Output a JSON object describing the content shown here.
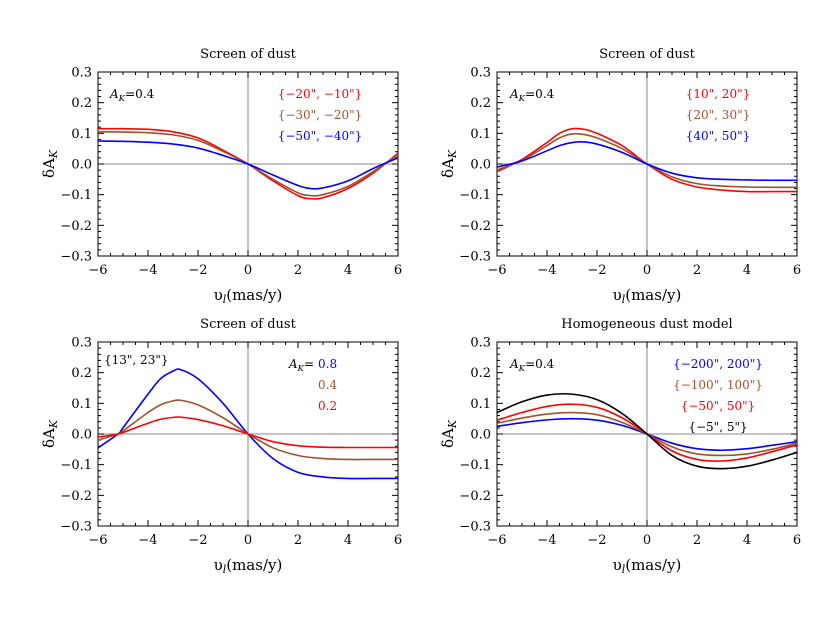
{
  "chart_data": [
    {
      "type": "line",
      "title": "Screen of dust",
      "xlabel": "υ_l(mas/y)",
      "ylabel": "δA_K",
      "xlim": [
        -6,
        6
      ],
      "ylim": [
        -0.3,
        0.3
      ],
      "xticks": [
        -6,
        -4,
        -2,
        0,
        2,
        4,
        6
      ],
      "yticks": [
        -0.3,
        -0.2,
        -0.1,
        0.0,
        0.1,
        0.2,
        0.3
      ],
      "annotation": "A_K=0.4",
      "legend": [
        "{−20\", −10\"}",
        "{−30\", −20\"}",
        "{−50\", −40\"}"
      ],
      "series": [
        {
          "name": "{−20\", −10\"}",
          "color": "#ff0000",
          "x": [
            -6,
            -5,
            -4,
            -3,
            -2,
            -1,
            0,
            1,
            2,
            2.5,
            3,
            4,
            5,
            6
          ],
          "values": [
            0.115,
            0.115,
            0.113,
            0.105,
            0.085,
            0.045,
            0.0,
            -0.055,
            -0.103,
            -0.113,
            -0.11,
            -0.08,
            -0.03,
            0.035
          ]
        },
        {
          "name": "{−30\", −20\"}",
          "color": "#a0522d",
          "x": [
            -6,
            -5,
            -4,
            -3,
            -2,
            -1,
            0,
            1,
            2,
            2.5,
            3,
            4,
            5,
            6
          ],
          "values": [
            0.105,
            0.104,
            0.102,
            0.095,
            0.077,
            0.041,
            0.0,
            -0.05,
            -0.094,
            -0.103,
            -0.1,
            -0.073,
            -0.025,
            0.03
          ]
        },
        {
          "name": "{−50\", −40\"}",
          "color": "#0000ff",
          "x": [
            -6,
            -5,
            -4,
            -3,
            -2,
            -1,
            0,
            1,
            2,
            2.5,
            3,
            4,
            5,
            6
          ],
          "values": [
            0.075,
            0.074,
            0.071,
            0.065,
            0.052,
            0.028,
            0.0,
            -0.036,
            -0.07,
            -0.08,
            -0.078,
            -0.055,
            -0.015,
            0.02
          ]
        }
      ]
    },
    {
      "type": "line",
      "title": "Screen of dust",
      "xlabel": "υ_l(mas/y)",
      "ylabel": "δA_K",
      "xlim": [
        -6,
        6
      ],
      "ylim": [
        -0.3,
        0.3
      ],
      "xticks": [
        -6,
        -4,
        -2,
        0,
        2,
        4,
        6
      ],
      "yticks": [
        -0.3,
        -0.2,
        -0.1,
        0.0,
        0.1,
        0.2,
        0.3
      ],
      "annotation": "A_K=0.4",
      "legend": [
        "{10\", 20\"}",
        "{20\", 30\"}",
        "{40\", 50\"}"
      ],
      "series": [
        {
          "name": "{10\", 20\"}",
          "color": "#ff0000",
          "x": [
            -6,
            -5,
            -4,
            -3.5,
            -3,
            -2.5,
            -2,
            -1,
            0,
            1,
            2,
            3,
            4,
            5,
            6
          ],
          "values": [
            -0.025,
            0.015,
            0.07,
            0.1,
            0.115,
            0.113,
            0.1,
            0.06,
            0.0,
            -0.05,
            -0.075,
            -0.085,
            -0.09,
            -0.09,
            -0.09
          ]
        },
        {
          "name": "{20\", 30\"}",
          "color": "#a0522d",
          "x": [
            -6,
            -5,
            -4,
            -3.5,
            -3,
            -2.5,
            -2,
            -1,
            0,
            1,
            2,
            3,
            4,
            5,
            6
          ],
          "values": [
            -0.02,
            0.012,
            0.06,
            0.085,
            0.098,
            0.096,
            0.085,
            0.05,
            0.0,
            -0.042,
            -0.064,
            -0.072,
            -0.075,
            -0.076,
            -0.076
          ]
        },
        {
          "name": "{40\", 50\"}",
          "color": "#0000ff",
          "x": [
            -6,
            -5,
            -4,
            -3.5,
            -3,
            -2.5,
            -2,
            -1,
            0,
            1,
            2,
            3,
            4,
            5,
            6
          ],
          "values": [
            -0.01,
            0.01,
            0.043,
            0.06,
            0.07,
            0.072,
            0.065,
            0.038,
            0.0,
            -0.03,
            -0.045,
            -0.05,
            -0.052,
            -0.053,
            -0.053
          ]
        }
      ]
    },
    {
      "type": "line",
      "title": "Screen of dust",
      "xlabel": "υ_l(mas/y)",
      "ylabel": "δA_K",
      "xlim": [
        -6,
        6
      ],
      "ylim": [
        -0.3,
        0.3
      ],
      "xticks": [
        -6,
        -4,
        -2,
        0,
        2,
        4,
        6
      ],
      "yticks": [
        -0.3,
        -0.2,
        -0.1,
        0.0,
        0.1,
        0.2,
        0.3
      ],
      "annotation": "{13\", 23\"}",
      "legend_prefix": "A_K= ",
      "legend": [
        "0.8",
        "0.4",
        "0.2"
      ],
      "series": [
        {
          "name": "0.8",
          "color": "#0000ff",
          "x": [
            -6,
            -5.2,
            -5,
            -4,
            -3.5,
            -3,
            -2.7,
            -2,
            -1,
            0,
            1,
            2,
            3,
            4,
            5,
            6
          ],
          "values": [
            -0.045,
            0.0,
            0.02,
            0.13,
            0.18,
            0.205,
            0.21,
            0.18,
            0.1,
            0.0,
            -0.08,
            -0.125,
            -0.14,
            -0.145,
            -0.145,
            -0.145
          ]
        },
        {
          "name": "0.4",
          "color": "#a0522d",
          "x": [
            -6,
            -5.2,
            -5,
            -4,
            -3.5,
            -3,
            -2.7,
            -2,
            -1,
            0,
            1,
            2,
            3,
            4,
            5,
            6
          ],
          "values": [
            -0.02,
            0.0,
            0.01,
            0.07,
            0.095,
            0.108,
            0.11,
            0.095,
            0.053,
            0.0,
            -0.045,
            -0.07,
            -0.08,
            -0.083,
            -0.083,
            -0.083
          ]
        },
        {
          "name": "0.2",
          "color": "#ff0000",
          "x": [
            -6,
            -5.2,
            -5,
            -4,
            -3.5,
            -3,
            -2.7,
            -2,
            -1,
            0,
            1,
            2,
            3,
            4,
            5,
            6
          ],
          "values": [
            -0.01,
            0.0,
            0.005,
            0.035,
            0.048,
            0.054,
            0.055,
            0.047,
            0.027,
            0.0,
            -0.025,
            -0.038,
            -0.043,
            -0.044,
            -0.044,
            -0.044
          ]
        }
      ]
    },
    {
      "type": "line",
      "title": "Homogeneous dust model",
      "xlabel": "υ_l(mas/y)",
      "ylabel": "δA_K",
      "xlim": [
        -6,
        6
      ],
      "ylim": [
        -0.3,
        0.3
      ],
      "xticks": [
        -6,
        -4,
        -2,
        0,
        2,
        4,
        6
      ],
      "yticks": [
        -0.3,
        -0.2,
        -0.1,
        0.0,
        0.1,
        0.2,
        0.3
      ],
      "annotation": "A_K=0.4",
      "legend": [
        "{−200\", 200\"}",
        "{−100\", 100\"}",
        "{−50\", 50\"}",
        "{−5\", 5\"}"
      ],
      "series": [
        {
          "name": "{−200\", 200\"}",
          "color": "#0000ff",
          "x": [
            -6,
            -5,
            -4,
            -3,
            -2,
            -1,
            0,
            1,
            2,
            3,
            4,
            5,
            6
          ],
          "values": [
            0.025,
            0.037,
            0.046,
            0.05,
            0.045,
            0.028,
            0.0,
            -0.03,
            -0.048,
            -0.053,
            -0.048,
            -0.037,
            -0.025
          ]
        },
        {
          "name": "{−100\", 100\"}",
          "color": "#a0522d",
          "x": [
            -6,
            -5,
            -4,
            -3,
            -2,
            -1,
            0,
            1,
            2,
            3,
            4,
            5,
            6
          ],
          "values": [
            0.035,
            0.052,
            0.065,
            0.07,
            0.063,
            0.038,
            0.0,
            -0.042,
            -0.065,
            -0.07,
            -0.065,
            -0.05,
            -0.03
          ]
        },
        {
          "name": "{−50\", 50\"}",
          "color": "#ff0000",
          "x": [
            -6,
            -5,
            -4,
            -3,
            -2,
            -1,
            0,
            1,
            2,
            3,
            4,
            5,
            6
          ],
          "values": [
            0.045,
            0.07,
            0.09,
            0.097,
            0.087,
            0.053,
            0.0,
            -0.055,
            -0.083,
            -0.088,
            -0.078,
            -0.058,
            -0.035
          ]
        },
        {
          "name": "{−5\", 5\"}",
          "color": "#000000",
          "x": [
            -6,
            -5,
            -4,
            -3,
            -2,
            -1,
            0,
            1,
            2,
            3,
            4,
            5,
            6
          ],
          "values": [
            0.07,
            0.105,
            0.127,
            0.13,
            0.112,
            0.067,
            0.0,
            -0.07,
            -0.105,
            -0.113,
            -0.105,
            -0.085,
            -0.06
          ]
        }
      ]
    }
  ]
}
